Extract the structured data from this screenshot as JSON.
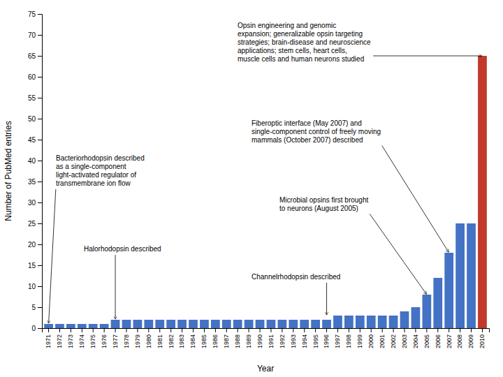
{
  "chart_data": {
    "type": "bar",
    "x_label": "Year",
    "y_label": "Number of PubMed entries",
    "categories": [
      "1971",
      "1972",
      "1973",
      "1974",
      "1975",
      "1976",
      "1977",
      "1978",
      "1979",
      "1980",
      "1981",
      "1982",
      "1983",
      "1984",
      "1985",
      "1986",
      "1987",
      "1988",
      "1989",
      "1990",
      "1991",
      "1992",
      "1993",
      "1994",
      "1995",
      "1996",
      "1997",
      "1998",
      "1999",
      "2000",
      "2001",
      "2002",
      "2003",
      "2004",
      "2005",
      "2006",
      "2007",
      "2008",
      "2009",
      "2010"
    ],
    "values": [
      1,
      1,
      1,
      1,
      1,
      1,
      2,
      2,
      2,
      2,
      2,
      2,
      2,
      2,
      2,
      2,
      2,
      2,
      2,
      2,
      2,
      2,
      2,
      2,
      2,
      2,
      3,
      3,
      3,
      3,
      3,
      3,
      4,
      5,
      8,
      12,
      18,
      25,
      25,
      65
    ],
    "colors": [
      "#4472c4",
      "#4472c4",
      "#4472c4",
      "#4472c4",
      "#4472c4",
      "#4472c4",
      "#4472c4",
      "#4472c4",
      "#4472c4",
      "#4472c4",
      "#4472c4",
      "#4472c4",
      "#4472c4",
      "#4472c4",
      "#4472c4",
      "#4472c4",
      "#4472c4",
      "#4472c4",
      "#4472c4",
      "#4472c4",
      "#4472c4",
      "#4472c4",
      "#4472c4",
      "#4472c4",
      "#4472c4",
      "#4472c4",
      "#4472c4",
      "#4472c4",
      "#4472c4",
      "#4472c4",
      "#4472c4",
      "#4472c4",
      "#4472c4",
      "#4472c4",
      "#4472c4",
      "#4472c4",
      "#4472c4",
      "#4472c4",
      "#4472c4",
      "#c0392b"
    ],
    "ylim": [
      0,
      75
    ],
    "yticks": [
      0,
      5,
      10,
      15,
      20,
      25,
      30,
      35,
      40,
      45,
      50,
      55,
      60,
      65,
      70,
      75
    ],
    "grid": false,
    "annotations": [
      {
        "text": "Bacteriorhodopsin described\nas a single-component\nlight-activated regulator of\ntransmembrane ion flow",
        "x": "1971",
        "y": 1
      },
      {
        "text": "Halorhodopsin described",
        "x": "1977",
        "y": 2
      },
      {
        "text": "Channelrhodopsin described",
        "x": "1996",
        "y": 3
      },
      {
        "text": "Fiberoptic interface (May 2007) and\nsingle-component control of freely moving\nmammals (October 2007) described",
        "x": "2007",
        "y": 18
      },
      {
        "text": "Microbial opsins first brought\nto neurons (August 2005)",
        "x": "2005",
        "y": 8
      },
      {
        "text": "Opsin engineering and genomic\nexpansion; generalizable opsin targeting\nstrategies; brain-disease and neuroscience\napplications; stem cells, heart cells,\nmuscle cells and human neurons studied",
        "x": "2010",
        "y": 65
      }
    ]
  }
}
